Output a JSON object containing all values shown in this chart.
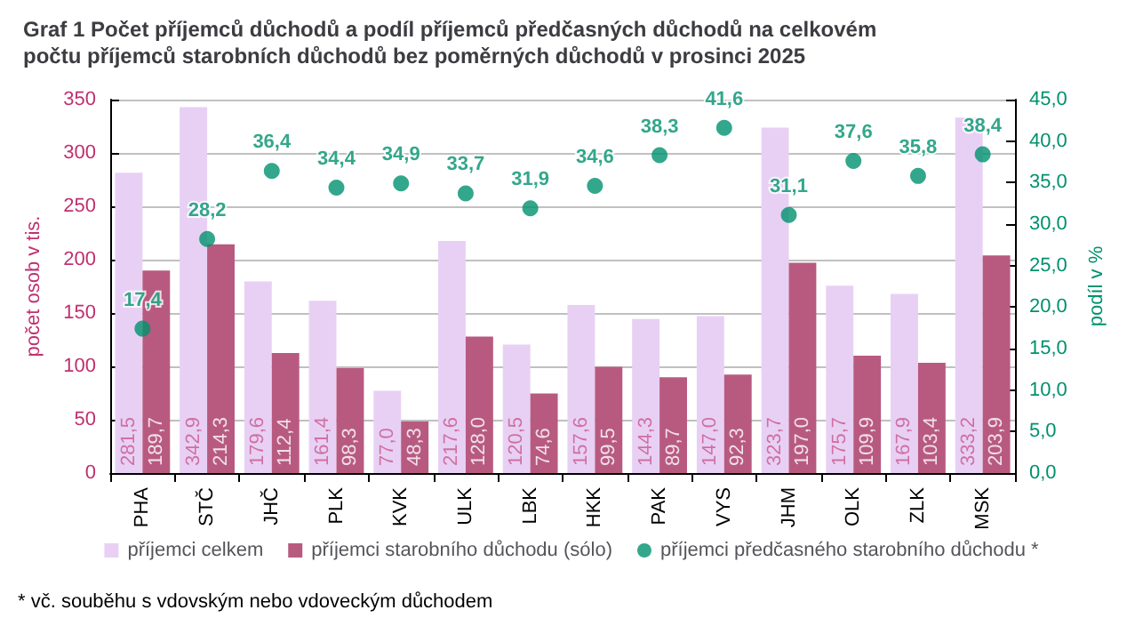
{
  "chart_data": {
    "type": "bar",
    "title": "Graf 1 Počet příjemců důchodů a podíl příjemců předčasných důchodů na celkovém počtu příjemců starobních důchodů bez poměrných důchodů v prosinci 2025",
    "ylabel": "počet osob v tis.",
    "y2label": "podíl v %",
    "categories": [
      "PHA",
      "STČ",
      "JHČ",
      "PLK",
      "KVK",
      "ULK",
      "LBK",
      "HKK",
      "PAK",
      "VYS",
      "JHM",
      "OLK",
      "ZLK",
      "MSK"
    ],
    "series": [
      {
        "name": "příjemci celkem",
        "color": "#e8d0f5",
        "values": [
          281.5,
          342.9,
          179.6,
          161.4,
          77.0,
          217.6,
          120.5,
          157.6,
          144.3,
          147.0,
          323.7,
          175.7,
          167.9,
          333.2
        ],
        "value_labels": [
          "281,5",
          "342,9",
          "179,6",
          "161,4",
          "77,0",
          "217,6",
          "120,5",
          "157,6",
          "144,3",
          "147,0",
          "323,7",
          "175,7",
          "167,9",
          "333,2"
        ]
      },
      {
        "name": "příjemci starobního důchodu (sólo)",
        "color": "#b85a80",
        "values": [
          189.7,
          214.3,
          112.4,
          98.3,
          48.3,
          128.0,
          74.6,
          99.5,
          89.7,
          92.3,
          197.0,
          109.9,
          103.4,
          203.9
        ],
        "value_labels": [
          "189,7",
          "214,3",
          "112,4",
          "98,3",
          "48,3",
          "128,0",
          "74,6",
          "99,5",
          "89,7",
          "92,3",
          "197,0",
          "109,9",
          "103,4",
          "203,9"
        ]
      },
      {
        "name": "příjemci předčasného starobního důchodu *",
        "type": "scatter",
        "axis": "y2",
        "color": "#00916e",
        "values": [
          17.4,
          28.2,
          36.4,
          34.4,
          34.9,
          33.7,
          31.9,
          34.6,
          38.3,
          41.6,
          31.1,
          37.6,
          35.8,
          38.4
        ],
        "value_labels": [
          "17,4",
          "28,2",
          "36,4",
          "34,4",
          "34,9",
          "33,7",
          "31,9",
          "34,6",
          "38,3",
          "41,6",
          "31,1",
          "37,6",
          "35,8",
          "38,4"
        ]
      }
    ],
    "ylim": [
      0,
      350
    ],
    "yticks": [
      0,
      50,
      100,
      150,
      200,
      250,
      300,
      350
    ],
    "y2lim": [
      0,
      45
    ],
    "y2ticks": [
      {
        "value": 0,
        "label": "0,0"
      },
      {
        "value": 5,
        "label": "5,0"
      },
      {
        "value": 10,
        "label": "10,0"
      },
      {
        "value": 15,
        "label": "15,0"
      },
      {
        "value": 20,
        "label": "20,0"
      },
      {
        "value": 25,
        "label": "25,0"
      },
      {
        "value": 30,
        "label": "30,0"
      },
      {
        "value": 35,
        "label": "35,0"
      },
      {
        "value": 40,
        "label": "40,0"
      },
      {
        "value": 45,
        "label": "45,0"
      }
    ],
    "grid": "y",
    "legend": "bottom",
    "marker": "circle",
    "annotations": [
      "* vč. souběhu s vdovským nebo vdoveckým důchodem"
    ]
  }
}
